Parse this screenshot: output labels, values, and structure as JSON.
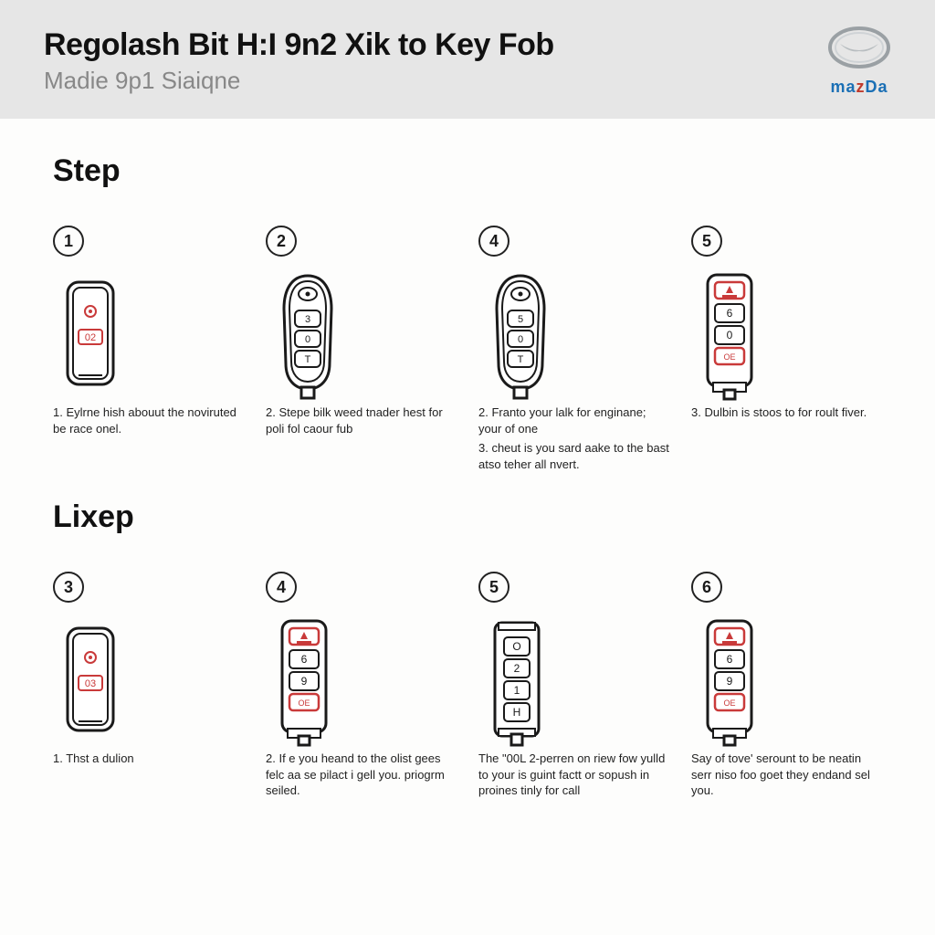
{
  "header": {
    "title": "Regolash Bit H:I 9n2 Xik to Key Fob",
    "subtitle": "Madie 9p1 Siaiqne",
    "logo_text": "mazDa",
    "logo_color_primary": "#1a6fb5",
    "logo_color_accent": "#c0392b",
    "logo_ring_color": "#9aa0a4"
  },
  "sections": [
    {
      "heading": "Step",
      "cells": [
        {
          "badge": "1",
          "fob_variant": "A",
          "fob_inner": "02",
          "captions": [
            "1. Eylrne hish abouut the noviruted be race onel."
          ]
        },
        {
          "badge": "2",
          "fob_variant": "B",
          "fob_btn_labels": [
            "3",
            "0",
            "T"
          ],
          "captions": [
            "2. Stepe bilk weed tnader hest for poli fol caour fub"
          ]
        },
        {
          "badge": "4",
          "fob_variant": "B",
          "fob_btn_labels": [
            "5",
            "0",
            "T"
          ],
          "captions": [
            "2. Franto your lalk for enginane; your of one",
            "3. cheut is you sard aake to the bast atso teher all nvert."
          ]
        },
        {
          "badge": "5",
          "fob_variant": "C",
          "fob_btn_labels": [
            "6",
            "0"
          ],
          "captions": [
            "3. Dulbin is stoos to for roult fiver."
          ]
        }
      ]
    },
    {
      "heading": "Lixep",
      "cells": [
        {
          "badge": "3",
          "fob_variant": "A",
          "fob_inner": "03",
          "captions": [
            "1. Thst a dulion"
          ]
        },
        {
          "badge": "4",
          "fob_variant": "C",
          "fob_btn_labels": [
            "6",
            "9"
          ],
          "captions": [
            "2. If e you heand to the olist gees felc aa se pilact i gell you. priogrm seiled."
          ]
        },
        {
          "badge": "5",
          "fob_variant": "D",
          "fob_btn_labels": [
            "O",
            "2",
            "1",
            "H"
          ],
          "captions": [
            "The \"00L 2-perren on riew fow yulld to your is guint factt or sopush in proines tinly for call"
          ]
        },
        {
          "badge": "6",
          "fob_variant": "C",
          "fob_btn_labels": [
            "6",
            "9"
          ],
          "captions": [
            "Say of tove' serount to be neatin serr niso foo goet they endand sel you."
          ]
        }
      ]
    }
  ],
  "style": {
    "background": "#fdfdfc",
    "header_bg": "#e6e6e6",
    "stroke": "#1a1a1a",
    "accent_red": "#c93a3a",
    "badge_border": "#222222",
    "title_fontsize": 34,
    "subtitle_fontsize": 26,
    "section_heading_fontsize": 34,
    "caption_fontsize": 13,
    "badge_diameter": 34
  }
}
